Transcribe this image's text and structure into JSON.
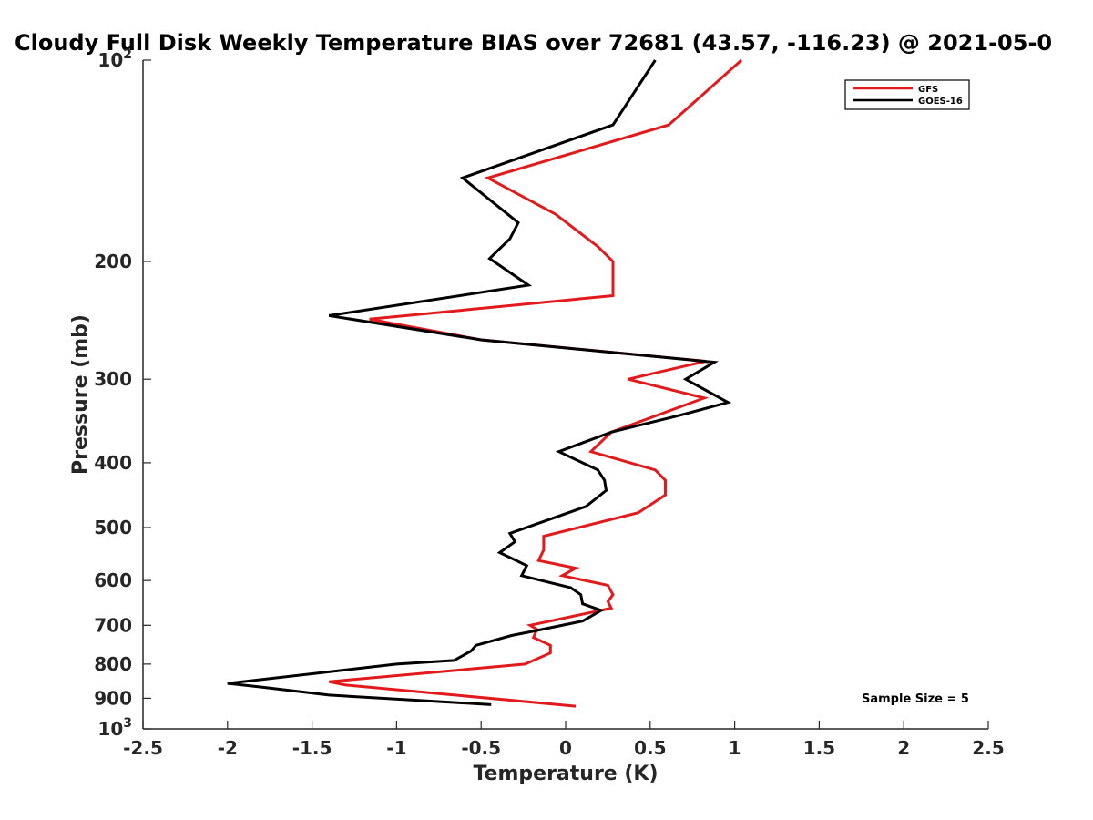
{
  "chart_data": {
    "type": "line",
    "title": "Cloudy Full Disk Weekly Temperature BIAS over 72681 (43.57, -116.23) @ 2021-05-0",
    "xlabel": "Temperature (K)",
    "ylabel": "Pressure (mb)",
    "xlim": [
      -2.5,
      2.5
    ],
    "ylim": [
      100,
      1000
    ],
    "y_scale": "log",
    "y_reversed": true,
    "grid": false,
    "legend_position": "top-right",
    "x_ticks": [
      "-2.5",
      "-2",
      "-1.5",
      "-1",
      "-0.5",
      "0",
      "0.5",
      "1",
      "1.5",
      "2",
      "2.5"
    ],
    "x_tick_values": [
      -2.5,
      -2,
      -1.5,
      -1,
      -0.5,
      0,
      0.5,
      1,
      1.5,
      2,
      2.5
    ],
    "y_ticks": [
      {
        "value": 100,
        "base": "10",
        "sup": "2"
      },
      {
        "value": 200,
        "base": "200",
        "sup": ""
      },
      {
        "value": 300,
        "base": "300",
        "sup": ""
      },
      {
        "value": 400,
        "base": "400",
        "sup": ""
      },
      {
        "value": 500,
        "base": "500",
        "sup": ""
      },
      {
        "value": 600,
        "base": "600",
        "sup": ""
      },
      {
        "value": 700,
        "base": "700",
        "sup": ""
      },
      {
        "value": 800,
        "base": "800",
        "sup": ""
      },
      {
        "value": 900,
        "base": "900",
        "sup": ""
      },
      {
        "value": 1000,
        "base": "10",
        "sup": "3"
      }
    ],
    "series": [
      {
        "name": "GFS",
        "color": "#e31a1c",
        "points": [
          [
            1.04,
            100
          ],
          [
            0.61,
            125
          ],
          [
            -0.46,
            150
          ],
          [
            -0.06,
            170
          ],
          [
            0.19,
            190
          ],
          [
            0.28,
            200
          ],
          [
            0.28,
            225
          ],
          [
            -1.16,
            244
          ],
          [
            -0.5,
            262
          ],
          [
            0.83,
            282
          ],
          [
            0.37,
            300
          ],
          [
            0.82,
            320
          ],
          [
            0.27,
            360
          ],
          [
            0.15,
            385
          ],
          [
            0.53,
            410
          ],
          [
            0.59,
            425
          ],
          [
            0.59,
            447
          ],
          [
            0.43,
            475
          ],
          [
            -0.13,
            515
          ],
          [
            -0.13,
            540
          ],
          [
            -0.16,
            560
          ],
          [
            0.06,
            575
          ],
          [
            -0.02,
            590
          ],
          [
            0.25,
            610
          ],
          [
            0.28,
            630
          ],
          [
            0.25,
            645
          ],
          [
            0.27,
            660
          ],
          [
            -0.21,
            700
          ],
          [
            -0.17,
            710
          ],
          [
            -0.19,
            730
          ],
          [
            -0.09,
            750
          ],
          [
            -0.09,
            770
          ],
          [
            -0.24,
            800
          ],
          [
            -1.4,
            850
          ],
          [
            -1.3,
            860
          ],
          [
            0.06,
            925
          ]
        ]
      },
      {
        "name": "GOES-16",
        "color": "#000000",
        "points": [
          [
            0.53,
            100
          ],
          [
            0.28,
            125
          ],
          [
            -0.61,
            150
          ],
          [
            -0.28,
            175
          ],
          [
            -0.33,
            185
          ],
          [
            -0.45,
            198
          ],
          [
            -0.22,
            217
          ],
          [
            -1.4,
            241
          ],
          [
            -0.5,
            262
          ],
          [
            0.88,
            283
          ],
          [
            0.71,
            300
          ],
          [
            0.96,
            325
          ],
          [
            0.67,
            340
          ],
          [
            0.27,
            360
          ],
          [
            -0.04,
            385
          ],
          [
            0.19,
            410
          ],
          [
            0.23,
            425
          ],
          [
            0.24,
            440
          ],
          [
            0.12,
            465
          ],
          [
            -0.33,
            510
          ],
          [
            -0.3,
            525
          ],
          [
            -0.39,
            545
          ],
          [
            -0.23,
            570
          ],
          [
            -0.26,
            590
          ],
          [
            0.03,
            615
          ],
          [
            0.09,
            630
          ],
          [
            0.1,
            650
          ],
          [
            0.21,
            665
          ],
          [
            0.1,
            690
          ],
          [
            -0.2,
            715
          ],
          [
            -0.32,
            725
          ],
          [
            -0.53,
            750
          ],
          [
            -0.56,
            765
          ],
          [
            -0.66,
            790
          ],
          [
            -1.0,
            800
          ],
          [
            -2.0,
            855
          ],
          [
            -1.8,
            866
          ],
          [
            -1.4,
            890
          ],
          [
            -0.44,
            920
          ]
        ]
      }
    ],
    "annotations": [
      "Sample Size = 5"
    ]
  },
  "legend": {
    "items": [
      {
        "label": "GFS",
        "color": "#e31a1c"
      },
      {
        "label": "GOES-16",
        "color": "#000000"
      }
    ]
  },
  "annotation": {
    "sample_size": "Sample Size = 5"
  }
}
